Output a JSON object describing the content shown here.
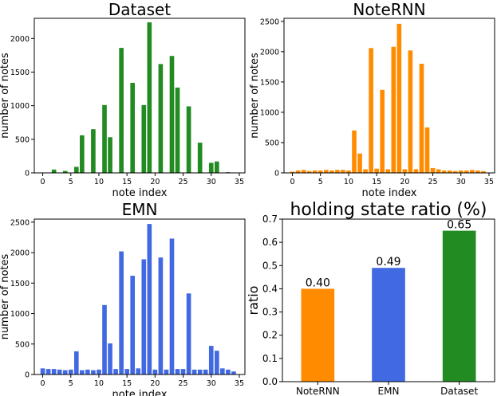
{
  "chart_data": [
    {
      "id": "dataset",
      "type": "bar",
      "title": "Dataset",
      "xlabel": "note index",
      "ylabel": "number of notes",
      "color": "#228b22",
      "xlim": [
        -1.5,
        36
      ],
      "ylim": [
        0,
        2300
      ],
      "xticks": [
        0,
        5,
        10,
        15,
        20,
        25,
        30,
        35
      ],
      "yticks": [
        0,
        500,
        1000,
        1500,
        2000
      ],
      "x": [
        2,
        4,
        6,
        7,
        9,
        11,
        12,
        14,
        16,
        18,
        19,
        21,
        23,
        24,
        26,
        28,
        30,
        31,
        33
      ],
      "values": [
        50,
        30,
        90,
        560,
        650,
        1010,
        530,
        1860,
        1340,
        1010,
        2240,
        1620,
        1740,
        1270,
        990,
        450,
        150,
        170,
        10
      ]
    },
    {
      "id": "notern",
      "type": "bar",
      "title": "NoteRNN",
      "xlabel": "note index",
      "ylabel": "number of notes",
      "color": "#ff8c00",
      "xlim": [
        -1.5,
        36
      ],
      "ylim": [
        0,
        2550
      ],
      "xticks": [
        0,
        5,
        10,
        15,
        20,
        25,
        30,
        35
      ],
      "yticks": [
        0,
        500,
        1000,
        1500,
        2000,
        2500
      ],
      "x": [
        0,
        1,
        2,
        3,
        4,
        5,
        6,
        7,
        8,
        9,
        10,
        11,
        12,
        13,
        14,
        15,
        16,
        17,
        18,
        19,
        20,
        21,
        22,
        23,
        24,
        25,
        26,
        27,
        28,
        29,
        30,
        31,
        32,
        33,
        34
      ],
      "values": [
        20,
        40,
        50,
        30,
        40,
        40,
        50,
        40,
        50,
        50,
        40,
        700,
        320,
        60,
        2060,
        70,
        1370,
        60,
        2080,
        2460,
        60,
        2020,
        60,
        1800,
        750,
        80,
        60,
        40,
        40,
        30,
        40,
        40,
        50,
        40,
        30
      ]
    },
    {
      "id": "emn",
      "type": "bar",
      "title": "EMN",
      "xlabel": "note index",
      "ylabel": "number of notes",
      "color": "#4169e1",
      "xlim": [
        -1.5,
        36
      ],
      "ylim": [
        0,
        2550
      ],
      "xticks": [
        0,
        5,
        10,
        15,
        20,
        25,
        30,
        35
      ],
      "yticks": [
        0,
        500,
        1000,
        1500,
        2000,
        2500
      ],
      "x": [
        0,
        1,
        2,
        3,
        4,
        5,
        6,
        7,
        8,
        9,
        10,
        11,
        12,
        13,
        14,
        15,
        16,
        17,
        18,
        19,
        20,
        21,
        22,
        23,
        24,
        25,
        26,
        27,
        28,
        29,
        30,
        31,
        32,
        33,
        34
      ],
      "values": [
        100,
        90,
        90,
        80,
        70,
        80,
        380,
        70,
        80,
        70,
        80,
        1140,
        510,
        90,
        2020,
        90,
        1620,
        100,
        1890,
        2470,
        80,
        1920,
        80,
        2230,
        90,
        90,
        1330,
        80,
        80,
        80,
        470,
        390,
        100,
        80,
        50
      ]
    },
    {
      "id": "holding",
      "type": "bar",
      "title": "holding state ratio (%)",
      "xlabel": "",
      "ylabel": "ratio",
      "ylim": [
        0,
        0.7
      ],
      "yticks": [
        "0.0",
        "0.1",
        "0.2",
        "0.3",
        "0.4",
        "0.5",
        "0.6",
        "0.7"
      ],
      "categories": [
        "NoteRNN",
        "EMN",
        "Dataset"
      ],
      "values": [
        0.4,
        0.49,
        0.65
      ],
      "value_labels": [
        "0.40",
        "0.49",
        "0.65"
      ],
      "colors": [
        "#ff8c00",
        "#4169e1",
        "#228b22"
      ]
    }
  ]
}
